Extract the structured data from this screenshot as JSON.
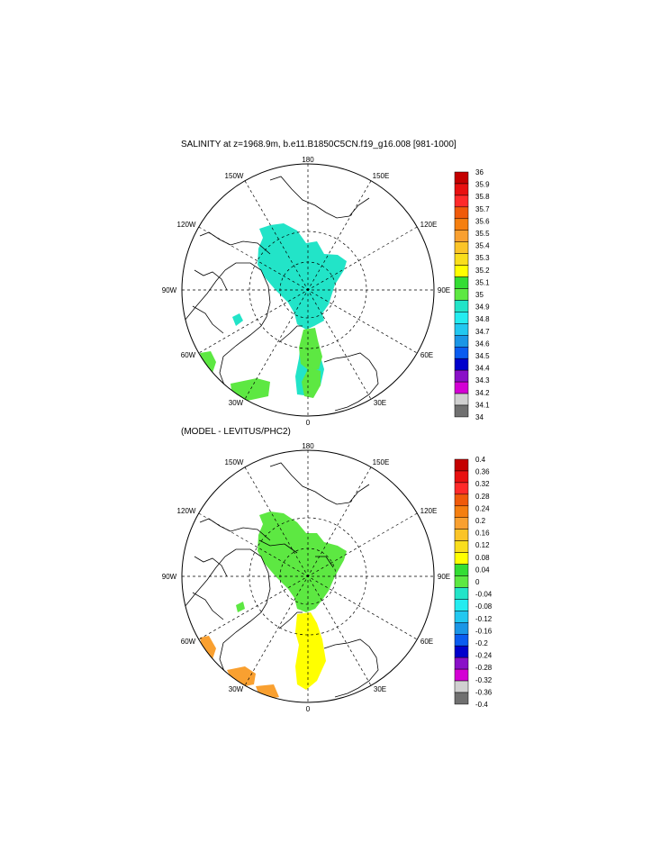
{
  "panels": [
    {
      "title": "SALINITY at z=1968.9m, b.e11.B1850C5CN.f19_g16.008 [981-1000]",
      "lon_labels": {
        "top": "180",
        "bottom": "0",
        "left": "90W",
        "right": "90E",
        "ul30": "150W",
        "ul60": "120W",
        "ll60": "60W",
        "ll30": "30W",
        "ur30": "150E",
        "ur60": "120E",
        "lr60": "60E",
        "lr30": "30E"
      },
      "colorbar": {
        "labels": [
          "36",
          "35.9",
          "35.8",
          "35.7",
          "35.6",
          "35.5",
          "35.4",
          "35.3",
          "35.2",
          "35.1",
          "35",
          "34.9",
          "34.8",
          "34.7",
          "34.6",
          "34.5",
          "34.4",
          "34.3",
          "34.2",
          "34.1",
          "34"
        ],
        "colors": [
          "#c40000",
          "#e81010",
          "#ff2a2a",
          "#f05a0a",
          "#f57f10",
          "#f9a030",
          "#fbc427",
          "#f9de1c",
          "#ffff00",
          "#33dd33",
          "#5de842",
          "#22e4c8",
          "#24ecf0",
          "#22c8f0",
          "#1a96e6",
          "#0a5cf0",
          "#0000cc",
          "#8a10c8",
          "#d400d4",
          "#d0d0d0",
          "#707070"
        ]
      }
    },
    {
      "title": "(MODEL - LEVITUS/PHC2)",
      "lon_labels": {
        "top": "180",
        "bottom": "0",
        "left": "90W",
        "right": "90E",
        "ul30": "150W",
        "ul60": "120W",
        "ll60": "60W",
        "ll30": "30W",
        "ur30": "150E",
        "ur60": "120E",
        "lr60": "60E",
        "lr30": "30E"
      },
      "colorbar": {
        "labels": [
          "0.4",
          "0.36",
          "0.32",
          "0.28",
          "0.24",
          "0.2",
          "0.16",
          "0.12",
          "0.08",
          "0.04",
          "0",
          "-0.04",
          "-0.08",
          "-0.12",
          "-0.16",
          "-0.2",
          "-0.24",
          "-0.28",
          "-0.32",
          "-0.36",
          "-0.4"
        ],
        "colors": [
          "#c40000",
          "#e81010",
          "#ff2a2a",
          "#f05a0a",
          "#f57f10",
          "#f9a030",
          "#fbc427",
          "#f9de1c",
          "#ffff00",
          "#33dd33",
          "#5de842",
          "#22e4c8",
          "#24ecf0",
          "#22c8f0",
          "#1a96e6",
          "#0a5cf0",
          "#0000cc",
          "#8a10c8",
          "#d400d4",
          "#d0d0d0",
          "#707070"
        ]
      }
    }
  ]
}
